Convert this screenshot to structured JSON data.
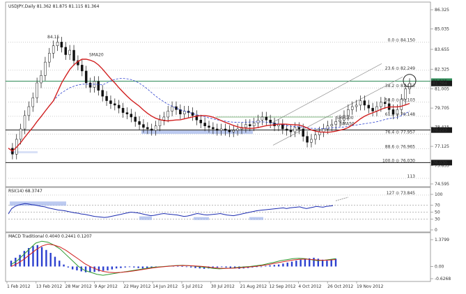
{
  "chart_data": [
    {
      "type": "candlestick",
      "title": "USDJPY,Daily  81.362 81.875 81.115 81.364",
      "ylim": [
        74.595,
        86.325
      ],
      "y_ticks": [
        "86.325",
        "85.035",
        "83.655",
        "82.325",
        "81.005",
        "79.705",
        "78.415",
        "77.125",
        "75.835",
        "74.595"
      ],
      "x_ticks": [
        "1 Feb 2012",
        "13 Feb 2012",
        "28 Mar 2012",
        "9 Apr 2012",
        "22 May 2012",
        "14 Jun 2012",
        "5 Jul 2012",
        "30 Jul 2012",
        "21 Aug 2012",
        "12 Sep 2012",
        "4 Oct 2012",
        "26 Oct 2012",
        "19 Nov 2012"
      ],
      "annotations": [
        "84.15",
        "SMA20",
        "SMA100",
        "SMA50"
      ],
      "fib_levels": [
        {
          "label": "0.0 ⊙ 84.150",
          "value": 84.15
        },
        {
          "label": "23.6 ⊙ 82.249",
          "value": 82.249
        },
        {
          "label": "38.2 ⊙ 81.063",
          "value": 81.063
        },
        {
          "label": "50.0 ⊙ 80.103",
          "value": 80.103
        },
        {
          "label": "61.8 ⊙ 79.148",
          "value": 79.148
        },
        {
          "label": "76.4 ⊙ 77.957",
          "value": 77.957
        },
        {
          "label": "88.6 ⊙ 76.965",
          "value": 76.965
        },
        {
          "label": "100.0 ⊙ 76.030",
          "value": 76.03
        },
        {
          "label": "113",
          "value": 74.97
        },
        {
          "label": "127 ⊙ 73.845",
          "value": 73.845
        }
      ],
      "price_tags": [
        {
          "text": "81.515",
          "value": 81.515,
          "color": "#2e8b57"
        },
        {
          "text": "81.364",
          "value": 81.364,
          "color": "#1a1a1a"
        },
        {
          "text": "78.223",
          "value": 78.223,
          "color": "#1a1a1a"
        },
        {
          "text": "76.030",
          "value": 76.03,
          "color": "#1a1a1a"
        }
      ],
      "horizontal_lines": [
        {
          "value": 81.515,
          "color": "#2e8b57"
        },
        {
          "value": 78.223,
          "color": "#1a1a1a"
        },
        {
          "value": 76.03,
          "color": "#1a1a1a"
        }
      ],
      "series": [
        {
          "name": "SMA20",
          "color": "#2e9a2e"
        },
        {
          "name": "SMA100",
          "color": "#2b3fcf"
        },
        {
          "name": "SMA50",
          "color": "#d11f1f"
        }
      ],
      "close_path": [
        77,
        76.6,
        77.6,
        78.3,
        79.2,
        79.8,
        80.4,
        81.4,
        81.9,
        82.8,
        83.4,
        83.9,
        84.15,
        83.8,
        83.3,
        83.6,
        82.9,
        82.6,
        82.2,
        81.4,
        81.1,
        81.5,
        80.9,
        80.5,
        80.2,
        80.0,
        79.9,
        79.7,
        79.4,
        79.3,
        79.1,
        78.8,
        78.6,
        78.4,
        78.3,
        78.2,
        78.5,
        78.9,
        79.1,
        79.5,
        79.8,
        79.6,
        79.3,
        79.5,
        79.4,
        79.2,
        78.9,
        78.7,
        78.5,
        78.4,
        78.3,
        78.2,
        78.3,
        78.2,
        78.1,
        78.2,
        78.3,
        78.4,
        78.6,
        78.5,
        78.7,
        78.9,
        79.1,
        78.9,
        78.7,
        78.5,
        78.6,
        78.3,
        78.2,
        78.1,
        78.4,
        78.3,
        77.8,
        77.4,
        77.6,
        77.9,
        78.1,
        78.3,
        78.5,
        78.6,
        78.8,
        78.9,
        79.2,
        79.6,
        79.8,
        79.9,
        80.2,
        79.9,
        79.7,
        79.5,
        79.8,
        80.1,
        80.0,
        79.6,
        79.3,
        79.6,
        80.3,
        81.0,
        81.36
      ]
    },
    {
      "type": "line",
      "title": "RSI(14) 68.3747",
      "ylim": [
        0,
        100
      ],
      "y_ticks": [
        "100",
        "70",
        "50",
        "30",
        "0"
      ],
      "levels": [
        70,
        50,
        30
      ],
      "values": [
        45,
        60,
        66,
        70,
        72,
        74,
        73,
        71,
        70,
        68,
        66,
        65,
        62,
        60,
        58,
        56,
        55,
        54,
        52,
        50,
        48,
        47,
        45,
        44,
        42,
        40,
        38,
        37,
        36,
        35,
        36,
        38,
        40,
        42,
        44,
        46,
        48,
        50,
        49,
        48,
        46,
        44,
        42,
        40,
        41,
        43,
        45,
        46,
        45,
        44,
        43,
        42,
        40,
        38,
        39,
        41,
        44,
        46,
        45,
        43,
        42,
        43,
        44,
        45,
        46,
        44,
        42,
        41,
        40,
        42,
        44,
        46,
        48,
        50,
        52,
        54,
        55,
        56,
        57,
        58,
        59,
        60,
        61,
        62,
        60,
        62,
        63,
        64,
        65,
        62,
        60,
        62,
        64,
        66,
        65,
        64,
        66,
        67,
        68.37
      ]
    },
    {
      "type": "bar",
      "title": "MACD Traditional 0.4040 0.2441 0.1207",
      "ylim": [
        -0.6268,
        1.3799
      ],
      "y_ticks": [
        "1.3799",
        "0.00",
        "-0.6268"
      ],
      "histogram": [
        0.3,
        0.45,
        0.6,
        0.8,
        0.95,
        1.05,
        1.1,
        1.0,
        0.85,
        0.7,
        0.5,
        0.3,
        0.1,
        -0.05,
        -0.15,
        -0.2,
        -0.25,
        -0.3,
        -0.3,
        -0.28,
        -0.25,
        -0.22,
        -0.2,
        -0.15,
        -0.1,
        -0.08,
        -0.05,
        -0.03,
        -0.05,
        -0.08,
        -0.1,
        -0.08,
        -0.05,
        -0.03,
        0.0,
        0.02,
        0.04,
        0.05,
        0.03,
        0.01,
        -0.02,
        -0.05,
        -0.08,
        -0.1,
        -0.12,
        -0.1,
        -0.08,
        -0.05,
        -0.03,
        -0.05,
        -0.08,
        -0.1,
        -0.12,
        -0.1,
        -0.08,
        -0.05,
        -0.02,
        0.0,
        0.03,
        0.06,
        0.08,
        0.1,
        0.15,
        0.2,
        0.25,
        0.3,
        0.35,
        0.4,
        0.42,
        0.45,
        0.4,
        0.35,
        0.3,
        0.35,
        0.4
      ],
      "macd_line": [
        0.1,
        0.3,
        0.6,
        0.9,
        1.2,
        1.3,
        1.25,
        1.1,
        0.9,
        0.6,
        0.3,
        0.0,
        -0.2,
        -0.3,
        -0.4,
        -0.45,
        -0.4,
        -0.35,
        -0.3,
        -0.25,
        -0.2,
        -0.15,
        -0.1,
        -0.05,
        -0.02,
        0.0,
        0.03,
        0.05,
        0.06,
        0.04,
        0.02,
        -0.02,
        -0.05,
        -0.1,
        -0.12,
        -0.1,
        -0.08,
        -0.05,
        -0.02,
        0.0,
        0.04,
        0.08,
        0.15,
        0.22,
        0.3,
        0.35,
        0.4,
        0.42,
        0.4,
        0.35,
        0.3,
        0.32,
        0.36,
        0.4
      ],
      "signal_line": [
        0.0,
        0.15,
        0.35,
        0.6,
        0.85,
        1.05,
        1.15,
        1.1,
        1.0,
        0.82,
        0.6,
        0.38,
        0.15,
        -0.02,
        -0.15,
        -0.25,
        -0.3,
        -0.32,
        -0.3,
        -0.27,
        -0.23,
        -0.18,
        -0.13,
        -0.08,
        -0.04,
        -0.01,
        0.02,
        0.04,
        0.05,
        0.045,
        0.03,
        0.01,
        -0.02,
        -0.06,
        -0.09,
        -0.1,
        -0.09,
        -0.07,
        -0.05,
        -0.02,
        0.01,
        0.05,
        0.1,
        0.16,
        0.22,
        0.28,
        0.33,
        0.37,
        0.38,
        0.36,
        0.33,
        0.32,
        0.33,
        0.36
      ]
    }
  ]
}
